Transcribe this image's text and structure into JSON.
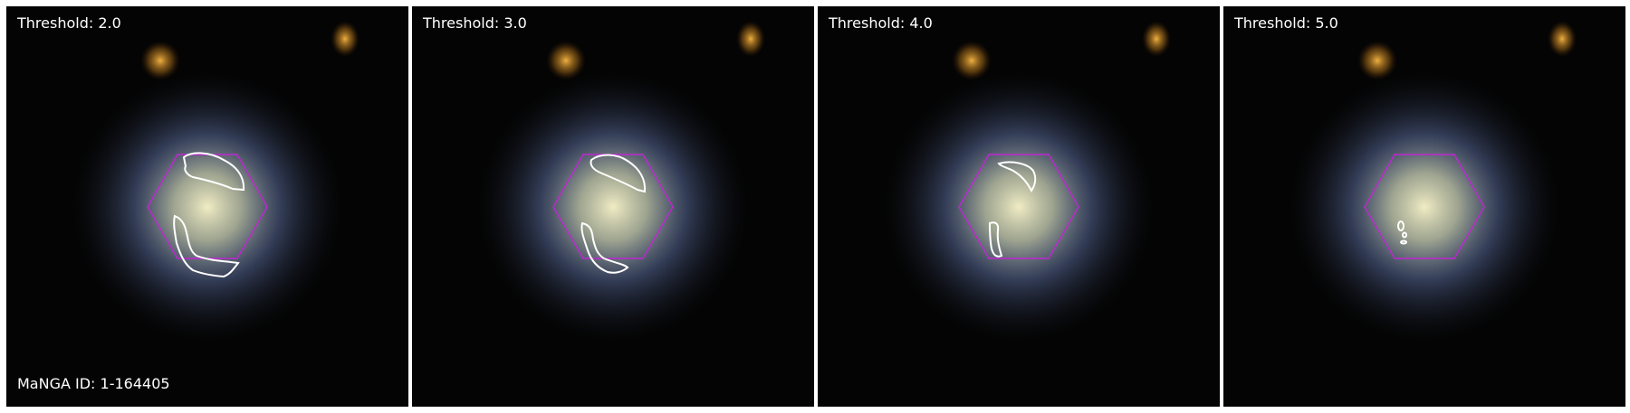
{
  "figure": {
    "panels": [
      {
        "title": "Threshold: 2.0"
      },
      {
        "title": "Threshold: 3.0"
      },
      {
        "title": "Threshold: 4.0"
      },
      {
        "title": "Threshold: 5.0"
      }
    ],
    "id_label": "MaNGA ID: 1-164405",
    "colors": {
      "hexagon": "#c026d3",
      "contour": "#ffffff",
      "background": "#040404",
      "galaxy_core": "#e8e2b8",
      "galaxy_halo": "#6f86c8",
      "companion": "#e0a030"
    }
  }
}
